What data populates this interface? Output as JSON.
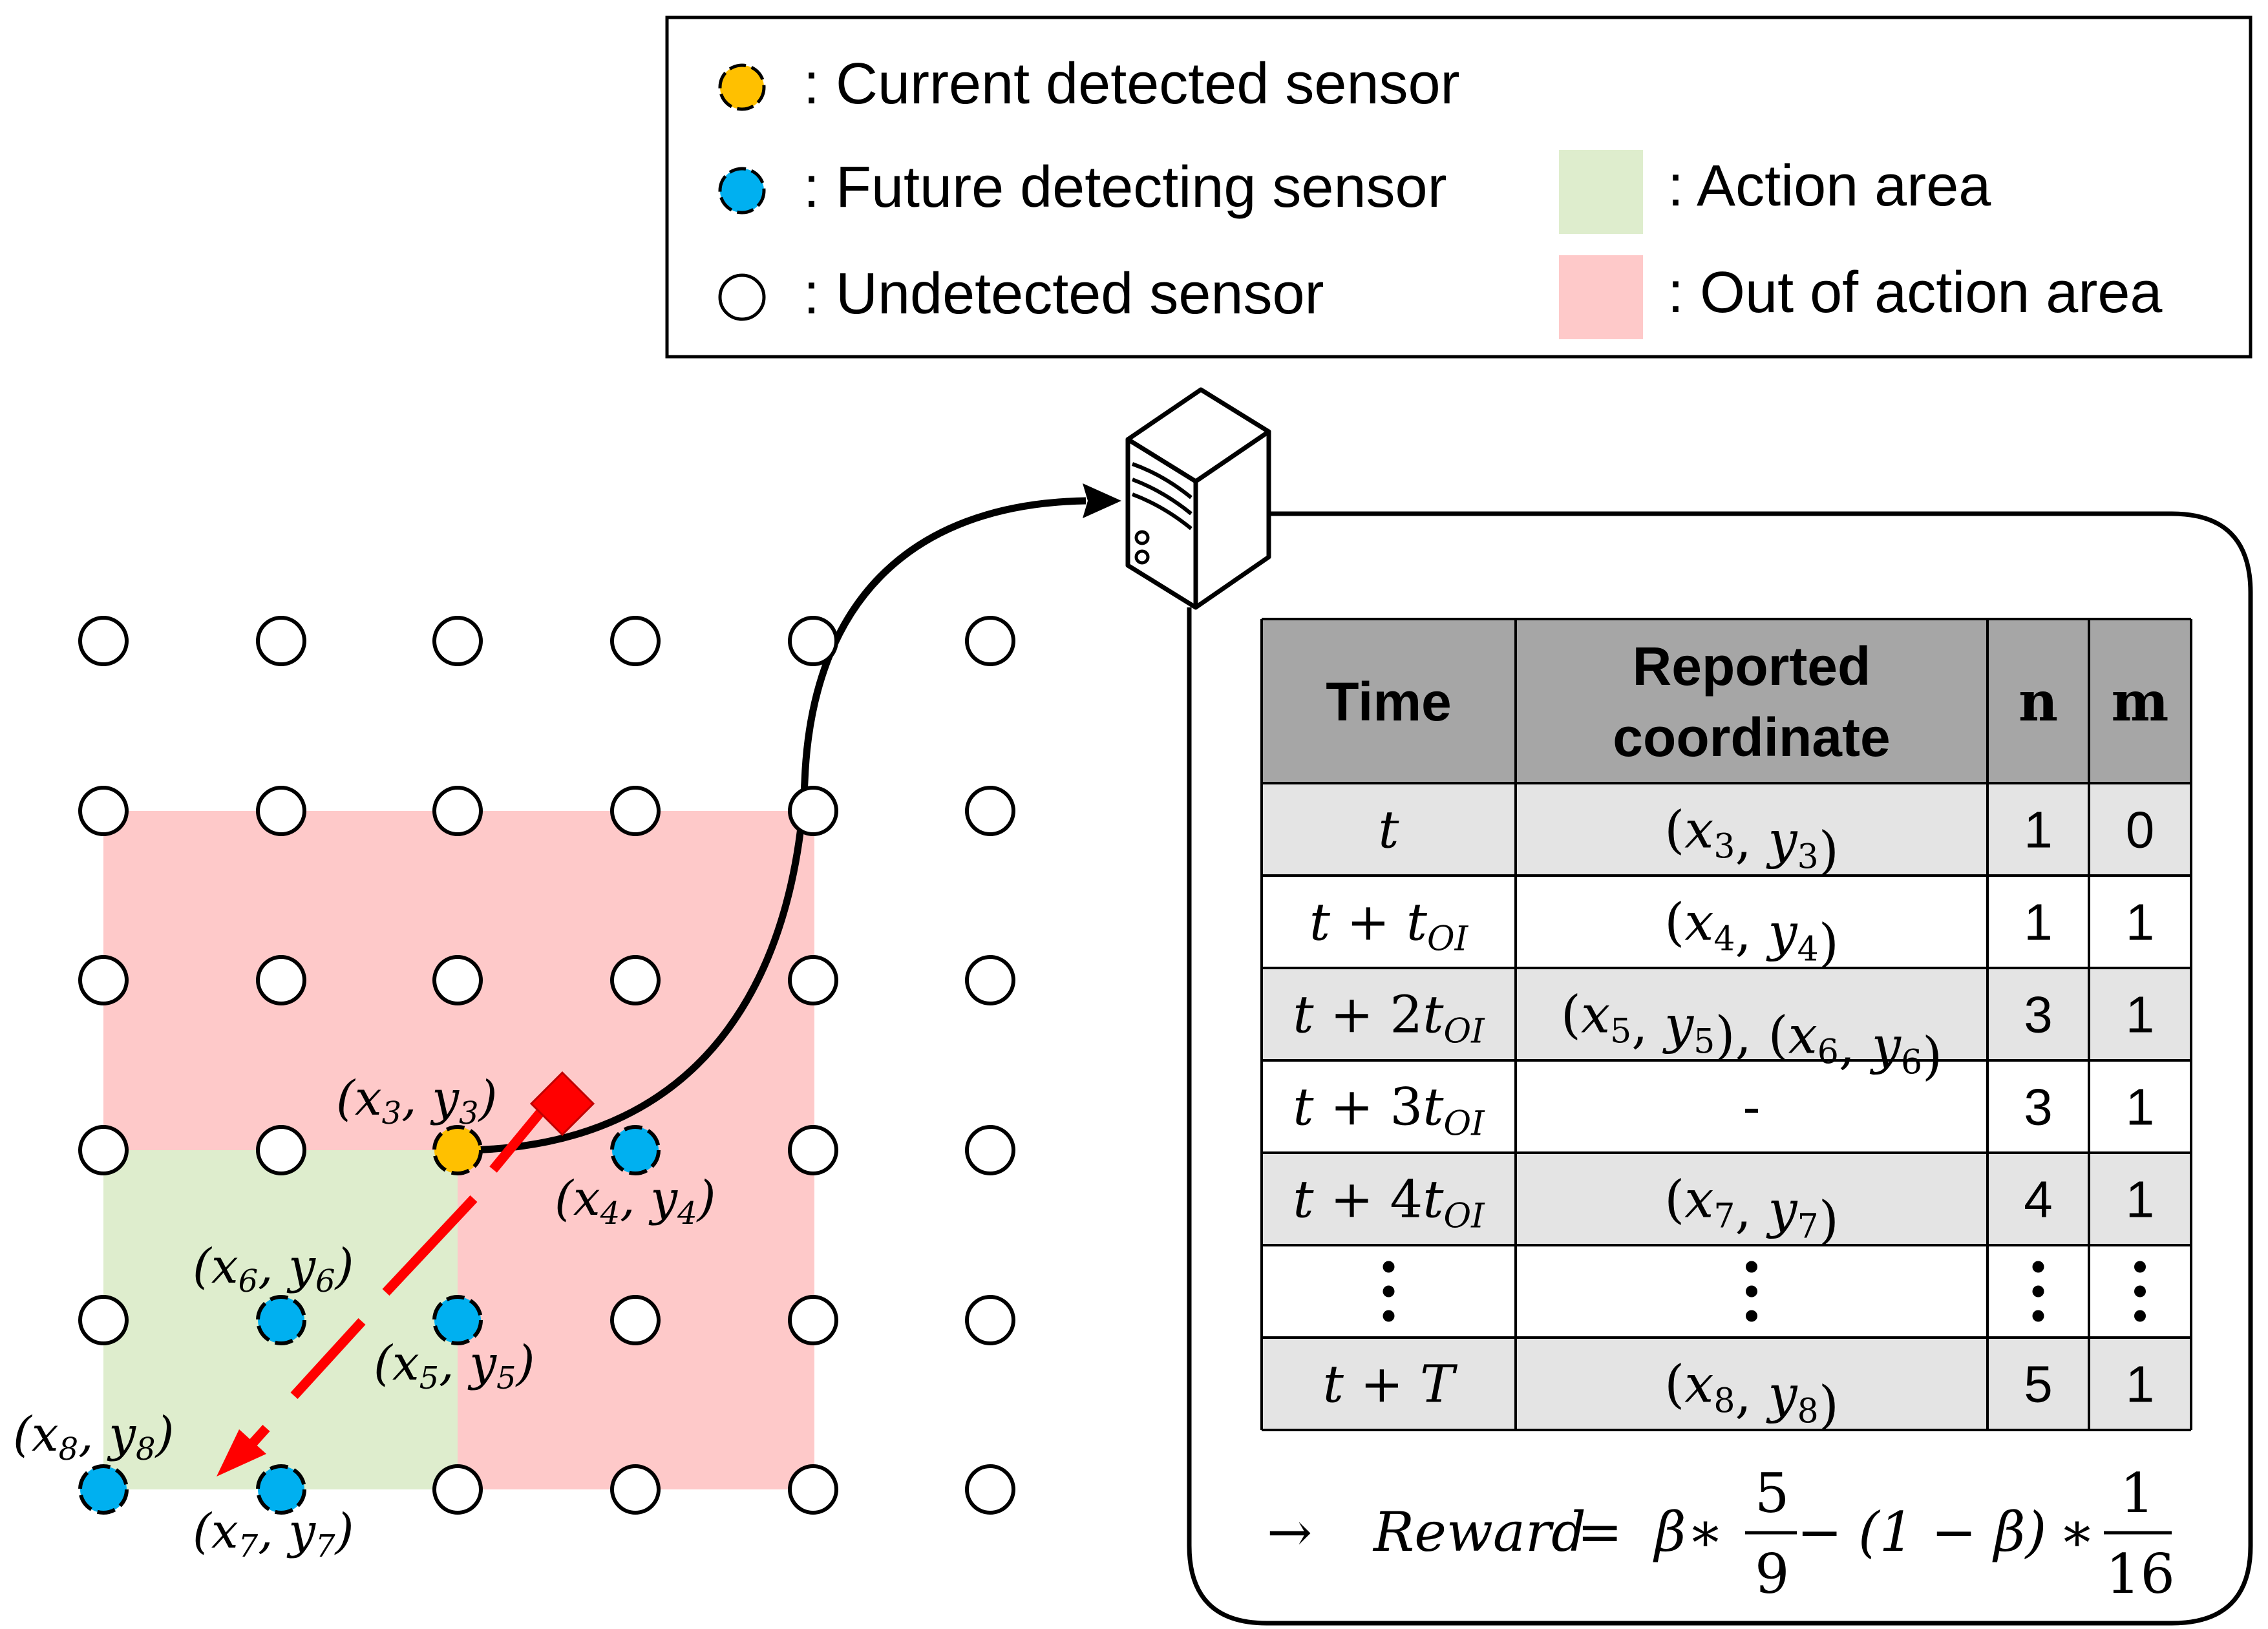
{
  "legend": {
    "current": ": Current detected sensor",
    "future": ": Future detecting sensor",
    "undetected": ": Undetected sensor",
    "action": ": Action area",
    "out": ": Out of action area"
  },
  "colors": {
    "current": "#FFC000",
    "future": "#00B0F0",
    "undetected": "#FFFFFF",
    "action_area": "#DEEDCD",
    "out_area": "#FEC9C9",
    "trajectory": "#FF0000",
    "table_header": "#A6A6A6",
    "table_shade": "#E4E4E4"
  },
  "points": {
    "p3": {
      "var": "x",
      "sub": "3",
      "var2": "y"
    },
    "p4": {
      "var": "x",
      "sub": "4",
      "var2": "y"
    },
    "p5": {
      "var": "x",
      "sub": "5",
      "var2": "y"
    },
    "p6": {
      "var": "x",
      "sub": "6",
      "var2": "y"
    },
    "p7": {
      "var": "x",
      "sub": "7",
      "var2": "y"
    },
    "p8": {
      "var": "x",
      "sub": "8",
      "var2": "y"
    }
  },
  "table": {
    "headers": {
      "time": "Time",
      "coord_line1": "Reported",
      "coord_line2": "coordinate",
      "n": "n",
      "m": "m"
    },
    "rows": [
      {
        "time_base": "t",
        "time_coef": "",
        "time_plus": "",
        "coord": "(x3, y3)",
        "n": "1",
        "m": "0"
      },
      {
        "time_base": "t",
        "time_plus": " + ",
        "time_coef": "",
        "coord": "(x4, y4)",
        "n": "1",
        "m": "1"
      },
      {
        "time_base": "t",
        "time_plus": " + ",
        "time_coef": "2",
        "coord": "(x5, y5), (x6, y6)",
        "n": "3",
        "m": "1"
      },
      {
        "time_base": "t",
        "time_plus": " + ",
        "time_coef": "3",
        "coord": "-",
        "n": "3",
        "m": "1"
      },
      {
        "time_base": "t",
        "time_plus": " + ",
        "time_coef": "4",
        "coord": "(x7, y7)",
        "n": "4",
        "m": "1"
      },
      {
        "ellipsis": "⋮"
      },
      {
        "time_base": "t",
        "time_plus": " + ",
        "time_T": "T",
        "coord": "(x8, y8)",
        "n": "5",
        "m": "1"
      }
    ],
    "time_var": "t",
    "time_sub": "OI"
  },
  "reward": {
    "arrow": "→",
    "label": "Reward",
    "eq": " = ",
    "beta": "β",
    "times": " ∗ ",
    "frac1_num": "5",
    "frac1_den": "9",
    "minus": " − ",
    "paren": "(1 − β)",
    "frac2_num": "1",
    "frac2_den": "16"
  },
  "icons": {
    "server": "server-icon",
    "trajectory": "trajectory-arrow",
    "endpoint": "diamond-marker"
  }
}
